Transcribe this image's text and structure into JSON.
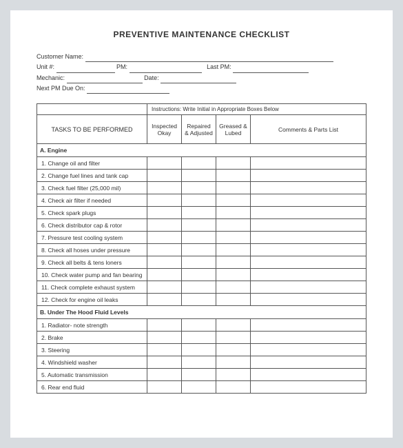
{
  "title": "PREVENTIVE MAINTENANCE CHECKLIST",
  "fields": {
    "customer_name": "Customer Name:",
    "unit": "Unit #:",
    "pm": "PM:",
    "last_pm": "Last PM:",
    "mechanic": "Mechanic:",
    "date": "Date:",
    "next_pm": "Next PM Due On:"
  },
  "table": {
    "instructions": "Instructions:  Write Initial in Appropriate Boxes Below",
    "headers": {
      "tasks": "TASKS TO BE PERFORMED",
      "inspected": "Inspected Okay",
      "repaired": "Repaired & Adjusted",
      "greased": "Greased & Lubed",
      "comments": "Comments & Parts List"
    },
    "sections": [
      {
        "title": "A. Engine",
        "rows": [
          "1.  Change oil and filter",
          "2.  Change fuel lines and tank cap",
          "3.  Check fuel filter (25,000 mil)",
          "4.  Check air filter if needed",
          "5.  Check spark plugs",
          "6.  Check distributor cap & rotor",
          "7.  Pressure test cooling system",
          "8. Check all hoses under pressure",
          "9.  Check all belts & tens loners",
          "10. Check water pump and fan bearing",
          "11. Check complete exhaust system",
          "12. Check for engine oil leaks"
        ]
      },
      {
        "title": "B. Under The Hood Fluid Levels",
        "rows": [
          "1. Radiator- note strength",
          "2. Brake",
          "3. Steering",
          "4. Windshield washer",
          "5. Automatic transmission",
          "6. Rear end fluid"
        ]
      }
    ]
  }
}
